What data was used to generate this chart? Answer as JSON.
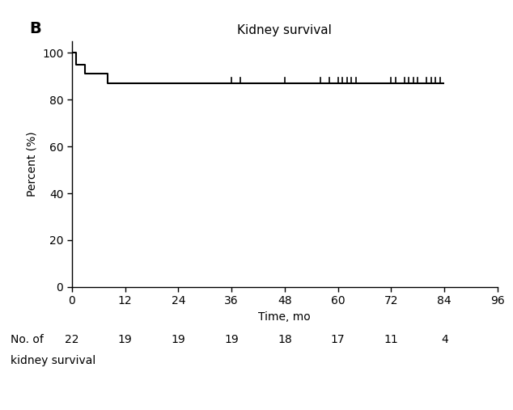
{
  "title": "Kidney survival",
  "panel_label": "B",
  "xlabel": "Time, mo",
  "ylabel": "Percent (%)",
  "xlim": [
    0,
    96
  ],
  "ylim": [
    0,
    105
  ],
  "xticks": [
    0,
    12,
    24,
    36,
    48,
    60,
    72,
    84,
    96
  ],
  "yticks": [
    0,
    20,
    40,
    60,
    80,
    100
  ],
  "km_x": [
    0,
    0,
    1,
    1,
    3,
    3,
    8,
    8,
    84
  ],
  "km_y": [
    100,
    100,
    100,
    95,
    95,
    91,
    91,
    87,
    87
  ],
  "censors": [
    36,
    38,
    48,
    56,
    58,
    60,
    61,
    62,
    63,
    64,
    72,
    73,
    75,
    76,
    77,
    78,
    80,
    81,
    82,
    83
  ],
  "censor_y": 87,
  "censor_height": 2.5,
  "line_color": "#000000",
  "background_color": "#ffffff",
  "table_label_line1": "No. of",
  "table_label_line2": "kidney survival",
  "table_times": [
    0,
    12,
    24,
    36,
    48,
    60,
    72,
    84
  ],
  "table_counts": [
    "22",
    "19",
    "19",
    "19",
    "18",
    "17",
    "11",
    "4"
  ],
  "title_fontsize": 11,
  "label_fontsize": 10,
  "tick_fontsize": 10,
  "table_fontsize": 10,
  "panel_fontsize": 14
}
